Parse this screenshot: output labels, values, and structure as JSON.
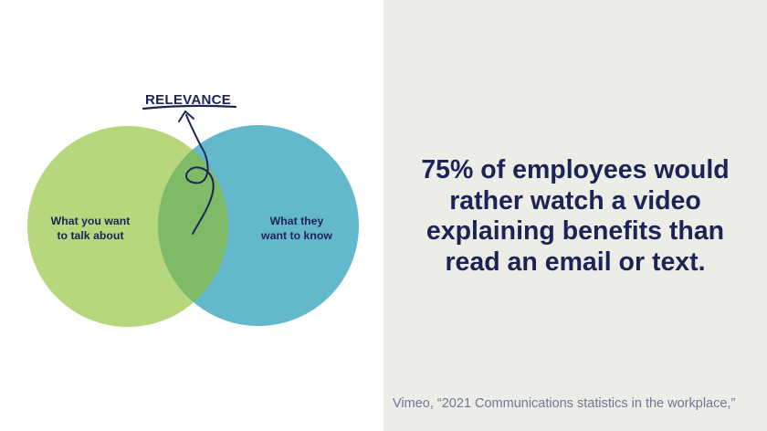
{
  "diagram": {
    "title": "RELEVANCE",
    "left_circle_label": [
      "What you want",
      "to talk about"
    ],
    "right_circle_label": [
      "What they",
      "want to know"
    ],
    "colors": {
      "left_circle": "#b6d77b",
      "right_circle": "#63b9cb",
      "overlap": "#7fbb66",
      "ink": "#1c2455"
    }
  },
  "statistic": {
    "text": "75% of employees would rather watch a video explaining benefits than read an email or text."
  },
  "source": {
    "text": "Vimeo, “2021 Communications statistics in the workplace,”"
  }
}
